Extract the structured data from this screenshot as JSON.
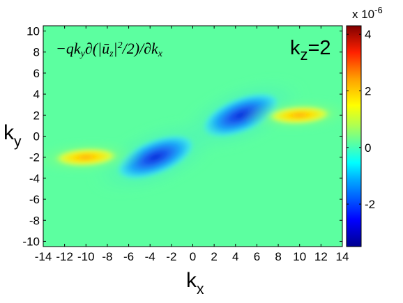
{
  "chart_data": {
    "type": "heatmap",
    "title": "",
    "annotation_formula": "−qk_y∂(|ū_z|²/2)/∂k_x",
    "annotation_panel": "k_z=2",
    "xlabel": "k_x",
    "ylabel": "k_y",
    "xlim": [
      -14,
      14
    ],
    "ylim": [
      -10.5,
      10.5
    ],
    "xticks": [
      "-14",
      "-12",
      "-10",
      "-8",
      "-6",
      "-4",
      "-2",
      "0",
      "2",
      "4",
      "6",
      "8",
      "10",
      "12",
      "14"
    ],
    "yticks": [
      "10",
      "8",
      "6",
      "4",
      "2",
      "0",
      "-2",
      "-4",
      "-6",
      "-8",
      "-10"
    ],
    "colorbar": {
      "exponent_label": "x 10",
      "exponent_power": "-6",
      "ticks": [
        "4",
        "2",
        "0",
        "-2"
      ],
      "range": [
        -3.5,
        4.3
      ],
      "colormap": "jet"
    },
    "features": [
      {
        "kx": 4.5,
        "ky": 2.0,
        "amplitude": -3.2,
        "shape": "elongated diagonal"
      },
      {
        "kx": -3.5,
        "ky": -2.0,
        "amplitude": -3.2,
        "shape": "elongated diagonal"
      },
      {
        "kx": 10.0,
        "ky": 2.0,
        "amplitude": 1.6,
        "shape": "horizontal band"
      },
      {
        "kx": -10.0,
        "ky": -2.0,
        "amplitude": 1.6,
        "shape": "horizontal band"
      }
    ],
    "grid": false
  }
}
